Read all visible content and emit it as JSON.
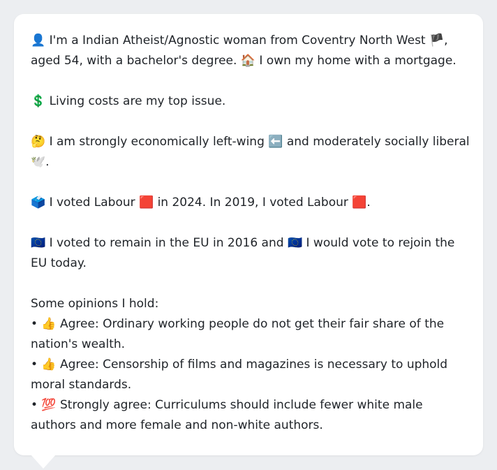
{
  "profile": {
    "intro": "👤 I'm a Indian Atheist/Agnostic woman from Coventry North West 🏴, aged 54, with a bachelor's degree. 🏠 I own my home with a mortgage.",
    "issue": "💲 Living costs are my top issue.",
    "ideology": "🤔 I am strongly economically left-wing ⬅️ and moderately socially liberal 🕊️.",
    "votes": "🗳️ I voted Labour 🟥 in 2024. In 2019, I voted Labour 🟥.",
    "eu": "🇪🇺 I voted to remain in the EU in 2016 and 🇪🇺 I would vote to rejoin the EU today."
  },
  "opinions": {
    "heading": "Some opinions I hold:",
    "items": [
      "• 👍 Agree: Ordinary working people do not get their fair share of the nation's wealth.",
      "• 👍 Agree: Censorship of films and magazines is necessary to uphold moral standards.",
      "• 💯 Strongly agree: Curriculums should include fewer white male authors and more female and non-white authors."
    ]
  }
}
